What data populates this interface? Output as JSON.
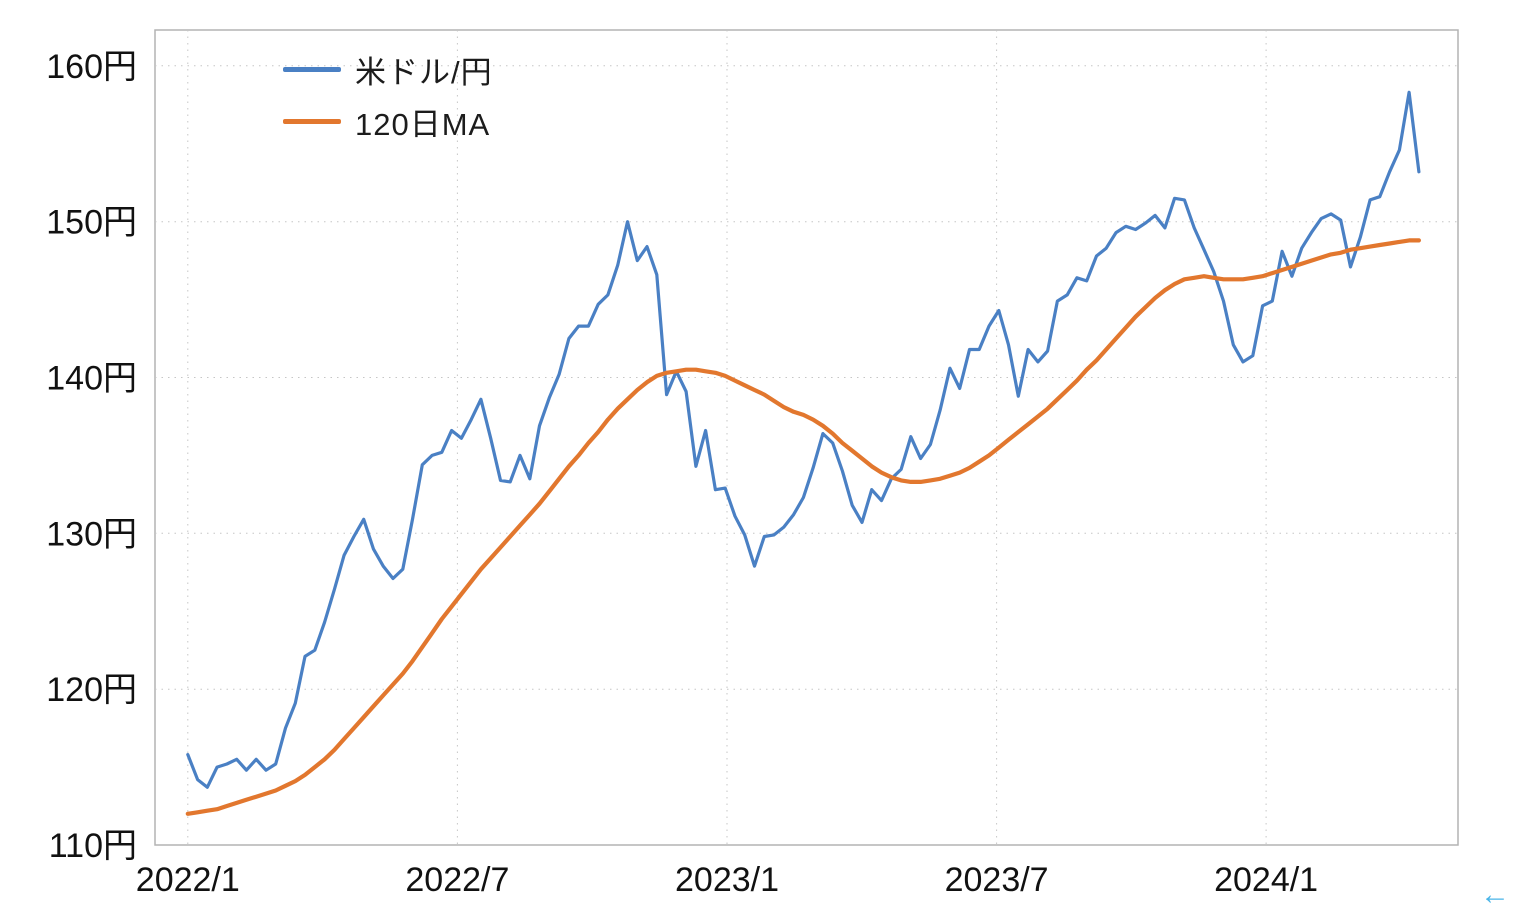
{
  "chart_data": {
    "type": "line",
    "title": "",
    "xlabel": "",
    "ylabel": "",
    "grid": true,
    "grid_style": "dotted",
    "legend": {
      "position": "top-left-inside",
      "items": [
        "米ドル/円",
        "120日MA"
      ]
    },
    "x_axis": {
      "tick_labels": [
        "2022/1",
        "2022/7",
        "2023/1",
        "2023/7",
        "2024/1"
      ],
      "tick_positions_months": [
        0,
        6,
        12,
        18,
        24
      ],
      "domain_months": [
        -0.73,
        28.27
      ]
    },
    "y_axis": {
      "tick_labels": [
        "110円",
        "120円",
        "130円",
        "140円",
        "150円",
        "160円"
      ],
      "tick_values": [
        110,
        120,
        130,
        140,
        150,
        160
      ],
      "domain": [
        110,
        162.3
      ]
    },
    "series": [
      {
        "id": "usdjpy",
        "name": "米ドル/円",
        "color": "#4a80c4",
        "width": 3.2,
        "x_start_month": 0,
        "x_end_month": 27.4,
        "values": [
          115.8,
          114.2,
          113.7,
          115.0,
          115.2,
          115.5,
          114.8,
          115.5,
          114.8,
          115.2,
          117.5,
          119.1,
          122.1,
          122.5,
          124.3,
          126.4,
          128.6,
          129.8,
          130.9,
          129.0,
          127.9,
          127.1,
          127.7,
          130.9,
          134.4,
          135.0,
          135.2,
          136.6,
          136.1,
          137.3,
          138.6,
          136.1,
          133.4,
          133.3,
          135.0,
          133.5,
          136.9,
          138.7,
          140.2,
          142.5,
          143.3,
          143.3,
          144.7,
          145.3,
          147.2,
          150.0,
          147.5,
          148.4,
          146.6,
          138.9,
          140.4,
          139.1,
          134.3,
          136.6,
          132.8,
          132.9,
          131.1,
          129.9,
          127.9,
          129.8,
          129.9,
          130.4,
          131.2,
          132.3,
          134.2,
          136.4,
          135.8,
          134.0,
          131.8,
          130.7,
          132.8,
          132.1,
          133.5,
          134.1,
          136.2,
          134.8,
          135.7,
          137.9,
          140.6,
          139.3,
          141.8,
          141.8,
          143.3,
          144.3,
          142.1,
          138.8,
          141.8,
          141.0,
          141.7,
          144.9,
          145.3,
          146.4,
          146.2,
          147.8,
          148.3,
          149.3,
          149.7,
          149.5,
          149.9,
          150.4,
          149.6,
          151.5,
          151.4,
          149.6,
          148.2,
          146.8,
          144.9,
          142.1,
          141.0,
          141.4,
          144.6,
          144.9,
          148.1,
          146.5,
          148.3,
          149.3,
          150.2,
          150.5,
          150.1,
          147.1,
          149.0,
          151.4,
          151.6,
          153.2,
          154.6,
          158.3,
          153.2
        ]
      },
      {
        "id": "ma120",
        "name": "120日MA",
        "color": "#e2772e",
        "width": 4.2,
        "x_start_month": 0,
        "x_end_month": 27.4,
        "values": [
          112.0,
          112.1,
          112.2,
          112.3,
          112.5,
          112.7,
          112.9,
          113.1,
          113.3,
          113.5,
          113.8,
          114.1,
          114.5,
          115.0,
          115.5,
          116.1,
          116.8,
          117.5,
          118.2,
          118.9,
          119.6,
          120.3,
          121.0,
          121.8,
          122.7,
          123.6,
          124.5,
          125.3,
          126.1,
          126.9,
          127.7,
          128.4,
          129.1,
          129.8,
          130.5,
          131.2,
          131.9,
          132.7,
          133.5,
          134.3,
          135.0,
          135.8,
          136.5,
          137.3,
          138.0,
          138.6,
          139.2,
          139.7,
          140.1,
          140.3,
          140.4,
          140.5,
          140.5,
          140.4,
          140.3,
          140.1,
          139.8,
          139.5,
          139.2,
          138.9,
          138.5,
          138.1,
          137.8,
          137.6,
          137.3,
          136.9,
          136.4,
          135.8,
          135.3,
          134.8,
          134.3,
          133.9,
          133.6,
          133.4,
          133.3,
          133.3,
          133.4,
          133.5,
          133.7,
          133.9,
          134.2,
          134.6,
          135.0,
          135.5,
          136.0,
          136.5,
          137.0,
          137.5,
          138.0,
          138.6,
          139.2,
          139.8,
          140.5,
          141.1,
          141.8,
          142.5,
          143.2,
          143.9,
          144.5,
          145.1,
          145.6,
          146.0,
          146.3,
          146.4,
          146.5,
          146.4,
          146.3,
          146.3,
          146.3,
          146.4,
          146.5,
          146.7,
          146.9,
          147.1,
          147.3,
          147.5,
          147.7,
          147.9,
          148.0,
          148.2,
          148.3,
          148.4,
          148.5,
          148.6,
          148.7,
          148.8,
          148.8
        ]
      }
    ],
    "style": {
      "plot_border_color": "#b3b3b3",
      "grid_color": "#c6c6c6",
      "tick_label_color": "#111111",
      "background_color": "#ffffff"
    }
  },
  "page": {
    "back_arrow_glyph": "←"
  }
}
